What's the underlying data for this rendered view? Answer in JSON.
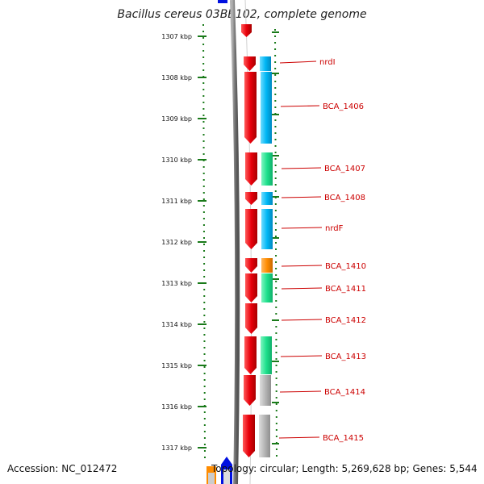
{
  "title": "Bacillus cereus 03BB102, complete genome",
  "footer": {
    "accession": "Accession: NC_012472",
    "summary": "Topology: circular; Length: 5,269,628 bp; Genes: 5,544"
  },
  "colors": {
    "cds": "#e8000b",
    "blue": "#00b7f5",
    "green": "#1ee08c",
    "orange": "#ff8c00",
    "gray": "#b5b5b5",
    "backbone": "#808080",
    "ticks": "#1a7a1a",
    "label": "#cc0000"
  },
  "scale": {
    "unit": "kbp",
    "ticks": [
      "1307 kbp",
      "1308 kbp",
      "1309 kbp",
      "1310 kbp",
      "1311 kbp",
      "1312 kbp",
      "1313 kbp",
      "1314 kbp",
      "1315 kbp",
      "1316 kbp",
      "1317 kbp"
    ]
  },
  "genes": [
    {
      "label": "nrdI",
      "cog": "blue"
    },
    {
      "label": "BCA_1406",
      "cog": "blue"
    },
    {
      "label": "BCA_1407",
      "cog": "green"
    },
    {
      "label": "BCA_1408",
      "cog": "blue"
    },
    {
      "label": "nrdF",
      "cog": "blue"
    },
    {
      "label": "BCA_1410",
      "cog": "orange"
    },
    {
      "label": "BCA_1411",
      "cog": "green"
    },
    {
      "label": "BCA_1412",
      "cog": "none"
    },
    {
      "label": "BCA_1413",
      "cog": "green"
    },
    {
      "label": "BCA_1414",
      "cog": "gray"
    },
    {
      "label": "BCA_1415",
      "cog": "gray"
    }
  ]
}
